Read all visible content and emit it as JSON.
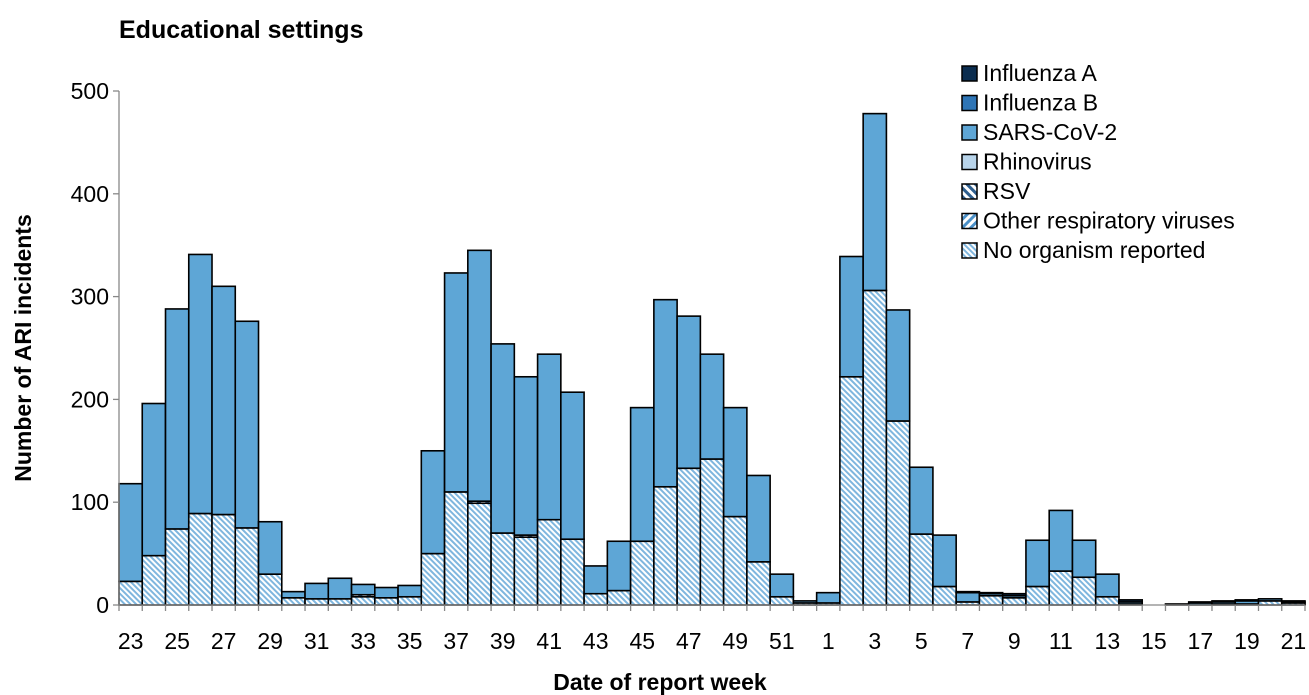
{
  "chart_data": {
    "type": "bar",
    "stacked": true,
    "title": "Educational settings",
    "xlabel": "Date of report week",
    "ylabel": "Number of ARI incidents",
    "ylim": [
      0,
      500
    ],
    "yticks": [
      0,
      100,
      200,
      300,
      400,
      500
    ],
    "legend_position": "top-right",
    "categories": [
      "23",
      "24",
      "25",
      "26",
      "27",
      "28",
      "29",
      "30",
      "31",
      "32",
      "33",
      "34",
      "35",
      "36",
      "37",
      "38",
      "39",
      "40",
      "41",
      "42",
      "43",
      "44",
      "45",
      "46",
      "47",
      "48",
      "49",
      "50",
      "51",
      "52",
      "1",
      "2",
      "3",
      "4",
      "5",
      "6",
      "7",
      "8",
      "9",
      "10",
      "11",
      "12",
      "13",
      "14",
      "15",
      "16",
      "17",
      "18",
      "19",
      "20",
      "21"
    ],
    "tick_labels": [
      "23",
      "",
      "25",
      "",
      "27",
      "",
      "29",
      "",
      "31",
      "",
      "33",
      "",
      "35",
      "",
      "37",
      "",
      "39",
      "",
      "41",
      "",
      "43",
      "",
      "45",
      "",
      "47",
      "",
      "49",
      "",
      "51",
      "",
      "1",
      "",
      "3",
      "",
      "5",
      "",
      "7",
      "",
      "9",
      "",
      "11",
      "",
      "13",
      "",
      "15",
      "",
      "17",
      "",
      "19",
      "",
      "21"
    ],
    "series": [
      {
        "name": "No organism reported",
        "pattern": "dense",
        "values": [
          23,
          48,
          74,
          89,
          88,
          75,
          30,
          7,
          6,
          6,
          8,
          7,
          8,
          50,
          110,
          99,
          70,
          66,
          83,
          64,
          11,
          14,
          62,
          115,
          133,
          142,
          86,
          42,
          8,
          2,
          2,
          222,
          306,
          179,
          69,
          18,
          3,
          9,
          7,
          18,
          33,
          27,
          8,
          1,
          0,
          0,
          0,
          1,
          1,
          4,
          2
        ]
      },
      {
        "name": "Other respiratory viruses",
        "pattern": "diagonal",
        "values": [
          0,
          0,
          0,
          0,
          0,
          0,
          0,
          0,
          0,
          0,
          0,
          0,
          0,
          0,
          0,
          0,
          0,
          0,
          0,
          0,
          0,
          0,
          0,
          0,
          0,
          0,
          0,
          0,
          0,
          0,
          0,
          0,
          0,
          0,
          0,
          0,
          0,
          0,
          0,
          0,
          0,
          0,
          0,
          0,
          0,
          0,
          0,
          0,
          0,
          0,
          0
        ]
      },
      {
        "name": "RSV",
        "pattern": "diagonal-bold",
        "values": [
          0,
          0,
          0,
          0,
          0,
          0,
          0,
          0,
          0,
          0,
          2,
          0,
          0,
          0,
          0,
          2,
          0,
          2,
          0,
          0,
          0,
          0,
          0,
          0,
          0,
          0,
          0,
          0,
          0,
          0,
          0,
          0,
          0,
          0,
          0,
          0,
          0,
          0,
          0,
          0,
          0,
          0,
          0,
          0,
          0,
          0,
          0,
          0,
          0,
          0,
          0
        ]
      },
      {
        "name": "Rhinovirus",
        "values": [
          0,
          0,
          0,
          0,
          0,
          0,
          0,
          0,
          0,
          0,
          0,
          0,
          0,
          0,
          0,
          0,
          0,
          0,
          0,
          0,
          0,
          0,
          0,
          0,
          0,
          0,
          0,
          0,
          0,
          0,
          0,
          0,
          0,
          0,
          0,
          0,
          0,
          0,
          0,
          0,
          0,
          0,
          0,
          0,
          0,
          0,
          0,
          0,
          0,
          0,
          0
        ]
      },
      {
        "name": "SARS-CoV-2",
        "values": [
          95,
          148,
          214,
          252,
          222,
          201,
          51,
          6,
          15,
          20,
          10,
          10,
          11,
          100,
          213,
          244,
          184,
          154,
          161,
          143,
          27,
          48,
          130,
          182,
          148,
          102,
          106,
          84,
          22,
          2,
          10,
          117,
          172,
          108,
          65,
          50,
          9,
          2,
          2,
          45,
          59,
          36,
          22,
          2,
          0,
          1,
          2,
          2,
          3,
          2,
          1
        ]
      },
      {
        "name": "Influenza B",
        "values": [
          0,
          0,
          0,
          0,
          0,
          0,
          0,
          0,
          0,
          0,
          0,
          0,
          0,
          0,
          0,
          0,
          0,
          0,
          0,
          0,
          0,
          0,
          0,
          0,
          0,
          0,
          0,
          0,
          0,
          0,
          0,
          0,
          0,
          0,
          0,
          0,
          0,
          0,
          0,
          0,
          0,
          0,
          0,
          0,
          0,
          0,
          0,
          0,
          0,
          0,
          0
        ]
      },
      {
        "name": "Influenza A",
        "values": [
          0,
          0,
          0,
          0,
          0,
          0,
          0,
          0,
          0,
          0,
          0,
          0,
          0,
          0,
          0,
          0,
          0,
          0,
          0,
          0,
          0,
          0,
          0,
          0,
          0,
          0,
          0,
          0,
          0,
          0,
          0,
          0,
          0,
          0,
          0,
          0,
          1,
          1,
          2,
          0,
          0,
          0,
          0,
          2,
          0,
          0,
          1,
          1,
          1,
          0,
          1
        ]
      }
    ],
    "legend": [
      "Influenza A",
      "Influenza B",
      "SARS-CoV-2",
      "Rhinovirus",
      "RSV",
      "Other respiratory viruses",
      "No organism reported"
    ],
    "colors": {
      "Influenza A": "#0b2d4f",
      "Influenza B": "#2e75b6",
      "SARS-CoV-2": "#5ea6d6",
      "Rhinovirus": "#b8d4ea",
      "RSV": "#2e5f8f",
      "Other respiratory viruses": "#4a90c8",
      "No organism reported": "#9dc6e4",
      "outline": "#000000"
    }
  }
}
